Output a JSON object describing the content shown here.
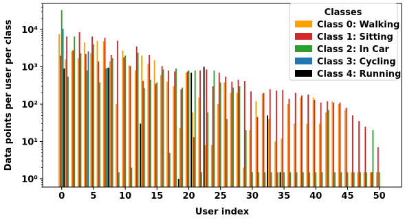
{
  "chart_data": {
    "type": "bar",
    "scale": "log",
    "xlabel": "User index",
    "ylabel": "Data points per user per class",
    "xlim": [
      -3.0,
      53.5
    ],
    "ylim": [
      0.6,
      50000
    ],
    "x_ticks": [
      0,
      5,
      10,
      15,
      20,
      25,
      30,
      35,
      40,
      45,
      50
    ],
    "y_ticks": [
      {
        "value": 1,
        "label": "10⁰"
      },
      {
        "value": 10,
        "label": "10¹"
      },
      {
        "value": 100,
        "label": "10²"
      },
      {
        "value": 1000,
        "label": "10³"
      },
      {
        "value": 10000,
        "label": "10⁴"
      }
    ],
    "legend": {
      "title": "Classes",
      "position": "top-right"
    },
    "series": [
      {
        "name": "Class 0: Walking",
        "color": "#ff9f00",
        "offset": -0.4,
        "points": [
          [
            0,
            7500
          ],
          [
            1,
            1600
          ],
          [
            2,
            2600
          ],
          [
            3,
            1700
          ],
          [
            4,
            4500
          ],
          [
            5,
            2300
          ],
          [
            6,
            5000
          ],
          [
            7,
            4800
          ],
          [
            8,
            1400
          ],
          [
            9,
            100
          ],
          [
            10,
            2700
          ],
          [
            11,
            1100
          ],
          [
            12,
            800
          ],
          [
            13,
            2000
          ],
          [
            14,
            1200
          ],
          [
            15,
            1500
          ],
          [
            16,
            600
          ],
          [
            17,
            400
          ],
          [
            18,
            300
          ],
          [
            19,
            23
          ],
          [
            20,
            700
          ],
          [
            21,
            60
          ],
          [
            22,
            150
          ],
          [
            23,
            8
          ],
          [
            24,
            8
          ],
          [
            25,
            100
          ],
          [
            26,
            380
          ],
          [
            27,
            200
          ],
          [
            28,
            200
          ],
          [
            29,
            2
          ],
          [
            30,
            20
          ],
          [
            31,
            120
          ],
          [
            32,
            190
          ],
          [
            33,
            40
          ],
          [
            34,
            10
          ],
          [
            35,
            12
          ],
          [
            36,
            100
          ],
          [
            37,
            30
          ],
          [
            38,
            150
          ],
          [
            39,
            30
          ],
          [
            40,
            150
          ],
          [
            41,
            30
          ],
          [
            42,
            60
          ],
          [
            43,
            120
          ],
          [
            44,
            100
          ],
          [
            45,
            70
          ],
          [
            46,
            1.5
          ],
          [
            47,
            1.5
          ],
          [
            48,
            1.5
          ],
          [
            49,
            1.5
          ],
          [
            50,
            1.5
          ]
        ]
      },
      {
        "name": "Class 1: Sitting",
        "color": "#d62728",
        "offset": -0.2,
        "points": [
          [
            0,
            2000
          ],
          [
            1,
            6500
          ],
          [
            2,
            2800
          ],
          [
            3,
            8500
          ],
          [
            4,
            2200
          ],
          [
            5,
            6500
          ],
          [
            6,
            1400
          ],
          [
            7,
            6000
          ],
          [
            8,
            2100
          ],
          [
            9,
            5000
          ],
          [
            10,
            1800
          ],
          [
            11,
            1050
          ],
          [
            12,
            3500
          ],
          [
            13,
            420
          ],
          [
            14,
            2100
          ],
          [
            15,
            350
          ],
          [
            16,
            1050
          ],
          [
            17,
            800
          ],
          [
            18,
            750
          ],
          [
            19,
            250
          ],
          [
            20,
            750
          ],
          [
            21,
            13
          ],
          [
            22,
            800
          ],
          [
            23,
            850
          ],
          [
            24,
            300
          ],
          [
            25,
            700
          ],
          [
            26,
            550
          ],
          [
            27,
            400
          ],
          [
            28,
            450
          ],
          [
            29,
            420
          ],
          [
            30,
            220
          ],
          [
            31,
            45
          ],
          [
            32,
            200
          ],
          [
            33,
            250
          ],
          [
            34,
            230
          ],
          [
            35,
            240
          ],
          [
            36,
            140
          ],
          [
            37,
            200
          ],
          [
            38,
            170
          ],
          [
            39,
            180
          ],
          [
            40,
            130
          ],
          [
            41,
            110
          ],
          [
            42,
            120
          ],
          [
            43,
            110
          ],
          [
            44,
            110
          ],
          [
            45,
            80
          ],
          [
            46,
            50
          ],
          [
            47,
            35
          ],
          [
            48,
            25
          ],
          [
            49,
            1.5
          ],
          [
            50,
            7
          ]
        ]
      },
      {
        "name": "Class 2: In Car",
        "color": "#2ca02c",
        "offset": 0,
        "points": [
          [
            0,
            33000
          ],
          [
            1,
            550
          ],
          [
            2,
            6500
          ],
          [
            3,
            2300
          ],
          [
            4,
            800
          ],
          [
            5,
            4000
          ],
          [
            6,
            380
          ],
          [
            7,
            900
          ],
          [
            8,
            1700
          ],
          [
            9,
            1.5
          ],
          [
            10,
            2000
          ],
          [
            11,
            2
          ],
          [
            12,
            2400
          ],
          [
            13,
            270
          ],
          [
            14,
            450
          ],
          [
            15,
            380
          ],
          [
            16,
            850
          ],
          [
            17,
            5
          ],
          [
            18,
            900
          ],
          [
            19,
            280
          ],
          [
            20,
            800
          ],
          [
            21,
            800
          ],
          [
            22,
            1.5
          ],
          [
            23,
            60
          ],
          [
            24,
            800
          ],
          [
            25,
            380
          ],
          [
            26,
            40
          ],
          [
            27,
            280
          ],
          [
            28,
            300
          ],
          [
            29,
            20
          ],
          [
            30,
            1.5
          ],
          [
            31,
            1.5
          ],
          [
            32,
            1.5
          ],
          [
            33,
            1.5
          ],
          [
            34,
            1.5
          ],
          [
            35,
            1.5
          ],
          [
            36,
            1.5
          ],
          [
            37,
            1.5
          ],
          [
            38,
            1.5
          ],
          [
            39,
            1.5
          ],
          [
            40,
            1.5
          ],
          [
            41,
            1.5
          ],
          [
            42,
            70
          ],
          [
            43,
            1.5
          ],
          [
            44,
            1.5
          ],
          [
            45,
            1.5
          ],
          [
            46,
            1.5
          ],
          [
            47,
            1.5
          ],
          [
            48,
            1.5
          ],
          [
            49,
            20
          ],
          [
            50,
            1.5
          ]
        ]
      },
      {
        "name": "Class 3: Cycling",
        "color": "#1f77b4",
        "offset": 0.2,
        "points": [
          [
            0,
            10500
          ],
          [
            4,
            2600
          ],
          [
            7,
            950
          ]
        ]
      },
      {
        "name": "Class 4: Running",
        "color": "#000000",
        "offset": 0.4,
        "points": [
          [
            0,
            900
          ],
          [
            7,
            950
          ],
          [
            12,
            30
          ],
          [
            18,
            1
          ],
          [
            20,
            700
          ],
          [
            22,
            1000
          ],
          [
            32,
            50
          ],
          [
            34,
            1.5
          ]
        ]
      }
    ]
  }
}
